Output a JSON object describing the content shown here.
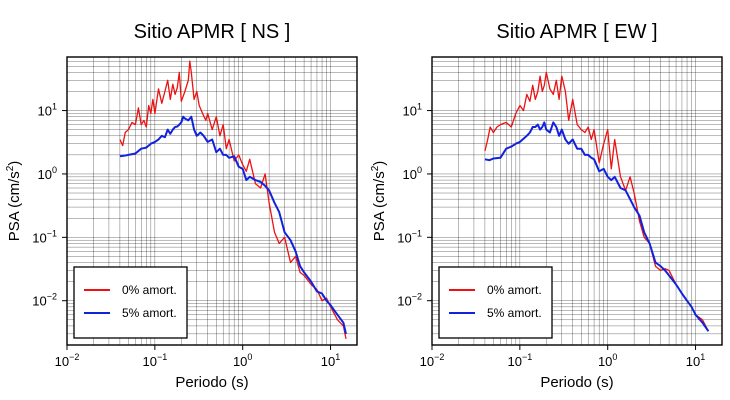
{
  "chart_data": [
    {
      "type": "line",
      "title": "Sitio APMR [ NS ]",
      "xlabel": "Periodo (s)",
      "ylabel_main": "PSA (cm/s",
      "ylabel_sup": "2",
      "ylabel_close": ")",
      "xscale": "log",
      "yscale": "log",
      "xlim": [
        0.01,
        20
      ],
      "ylim": [
        0.002,
        70
      ],
      "xticks": [
        {
          "value": 0.01,
          "base": "10",
          "exp": "−2"
        },
        {
          "value": 0.1,
          "base": "10",
          "exp": "−1"
        },
        {
          "value": 1,
          "base": "10",
          "exp": "0"
        },
        {
          "value": 10,
          "base": "10",
          "exp": "1"
        }
      ],
      "yticks": [
        {
          "value": 0.01,
          "base": "10",
          "exp": "−2"
        },
        {
          "value": 0.1,
          "base": "10",
          "exp": "−1"
        },
        {
          "value": 1,
          "base": "10",
          "exp": "0"
        },
        {
          "value": 10,
          "base": "10",
          "exp": "1"
        }
      ],
      "grid": true,
      "legend_position": "bottom-left",
      "series": [
        {
          "name": "0% amort.",
          "color": "#ee1111",
          "x": [
            0.04,
            0.043,
            0.046,
            0.05,
            0.055,
            0.06,
            0.065,
            0.07,
            0.075,
            0.08,
            0.085,
            0.09,
            0.095,
            0.1,
            0.11,
            0.12,
            0.13,
            0.14,
            0.15,
            0.16,
            0.17,
            0.18,
            0.19,
            0.2,
            0.22,
            0.24,
            0.25,
            0.26,
            0.28,
            0.3,
            0.32,
            0.35,
            0.38,
            0.4,
            0.45,
            0.5,
            0.55,
            0.6,
            0.65,
            0.7,
            0.8,
            0.9,
            1.0,
            1.1,
            1.2,
            1.4,
            1.6,
            1.8,
            2.0,
            2.3,
            2.6,
            3.0,
            3.5,
            4.0,
            4.5,
            5.0,
            6.0,
            7.0,
            8.0,
            9.0,
            10.0,
            12.0,
            14.0,
            15.0
          ],
          "y": [
            3.5,
            2.8,
            4.5,
            5.0,
            6.5,
            6.0,
            11.0,
            6.0,
            7.0,
            5.5,
            12.0,
            9.0,
            15.0,
            9.0,
            22.0,
            13.0,
            20.0,
            30.0,
            15.0,
            26.0,
            18.0,
            23.0,
            40.0,
            14.0,
            20.0,
            30.0,
            60.0,
            40.0,
            15.0,
            20.0,
            12.0,
            9.0,
            7.0,
            9.0,
            5.0,
            8.0,
            4.0,
            6.0,
            2.5,
            3.5,
            1.6,
            2.0,
            1.4,
            1.1,
            1.7,
            0.7,
            0.6,
            1.0,
            0.35,
            0.12,
            0.08,
            0.1,
            0.04,
            0.05,
            0.028,
            0.025,
            0.018,
            0.015,
            0.01,
            0.011,
            0.008,
            0.005,
            0.004,
            0.0025
          ]
        },
        {
          "name": "5% amort.",
          "color": "#1122dd",
          "x": [
            0.04,
            0.045,
            0.05,
            0.06,
            0.07,
            0.08,
            0.09,
            0.1,
            0.11,
            0.12,
            0.13,
            0.14,
            0.15,
            0.16,
            0.17,
            0.18,
            0.19,
            0.2,
            0.21,
            0.22,
            0.24,
            0.26,
            0.28,
            0.3,
            0.33,
            0.36,
            0.4,
            0.45,
            0.5,
            0.55,
            0.6,
            0.65,
            0.7,
            0.8,
            0.9,
            1.0,
            1.1,
            1.2,
            1.4,
            1.6,
            1.8,
            2.0,
            2.3,
            2.6,
            3.0,
            3.5,
            4.0,
            4.5,
            5.0,
            6.0,
            7.0,
            8.0,
            9.0,
            10.0,
            12.0,
            14.0,
            15.0
          ],
          "y": [
            1.9,
            1.95,
            2.0,
            2.1,
            2.5,
            2.6,
            3.0,
            3.2,
            3.5,
            4.0,
            3.8,
            5.0,
            4.3,
            5.0,
            5.5,
            5.6,
            6.0,
            6.5,
            8.0,
            7.5,
            7.0,
            8.0,
            5.0,
            4.0,
            4.5,
            4.0,
            3.2,
            3.5,
            2.2,
            2.5,
            2.0,
            2.0,
            1.8,
            1.9,
            1.3,
            1.2,
            0.8,
            0.9,
            0.8,
            0.75,
            0.65,
            0.55,
            0.35,
            0.25,
            0.12,
            0.09,
            0.06,
            0.035,
            0.028,
            0.02,
            0.014,
            0.013,
            0.01,
            0.0085,
            0.006,
            0.0045,
            0.003
          ]
        }
      ]
    },
    {
      "type": "line",
      "title": "Sitio APMR [ EW ]",
      "xlabel": "Periodo (s)",
      "ylabel_main": "PSA (cm/s",
      "ylabel_sup": "2",
      "ylabel_close": ")",
      "xscale": "log",
      "yscale": "log",
      "xlim": [
        0.01,
        20
      ],
      "ylim": [
        0.002,
        70
      ],
      "xticks": [
        {
          "value": 0.01,
          "base": "10",
          "exp": "−2"
        },
        {
          "value": 0.1,
          "base": "10",
          "exp": "−1"
        },
        {
          "value": 1,
          "base": "10",
          "exp": "0"
        },
        {
          "value": 10,
          "base": "10",
          "exp": "1"
        }
      ],
      "yticks": [
        {
          "value": 0.01,
          "base": "10",
          "exp": "−2"
        },
        {
          "value": 0.1,
          "base": "10",
          "exp": "−1"
        },
        {
          "value": 1,
          "base": "10",
          "exp": "0"
        },
        {
          "value": 10,
          "base": "10",
          "exp": "1"
        }
      ],
      "grid": true,
      "legend_position": "bottom-left",
      "series": [
        {
          "name": "0% amort.",
          "color": "#ee1111",
          "x": [
            0.04,
            0.043,
            0.046,
            0.05,
            0.055,
            0.06,
            0.07,
            0.08,
            0.09,
            0.1,
            0.11,
            0.12,
            0.13,
            0.14,
            0.15,
            0.16,
            0.17,
            0.18,
            0.19,
            0.2,
            0.22,
            0.24,
            0.26,
            0.28,
            0.3,
            0.33,
            0.36,
            0.4,
            0.45,
            0.5,
            0.55,
            0.6,
            0.65,
            0.7,
            0.8,
            0.9,
            1.0,
            1.1,
            1.2,
            1.4,
            1.6,
            1.8,
            2.0,
            2.3,
            2.6,
            3.0,
            3.5,
            4.0,
            4.5,
            5.0,
            6.0,
            7.0,
            8.0,
            9.0,
            10.0,
            12.0,
            14.0
          ],
          "y": [
            2.3,
            3.5,
            5.5,
            4.5,
            5.5,
            6.0,
            6.5,
            5.5,
            9.0,
            12.0,
            10.0,
            18.0,
            14.0,
            25.0,
            15.0,
            20.0,
            35.0,
            20.0,
            25.0,
            40.0,
            22.0,
            18.0,
            30.0,
            15.0,
            35.0,
            20.0,
            7.0,
            15.0,
            6.0,
            5.0,
            4.5,
            5.5,
            3.5,
            5.0,
            1.5,
            3.0,
            5.0,
            1.2,
            3.5,
            0.9,
            0.55,
            0.9,
            0.5,
            0.18,
            0.1,
            0.08,
            0.035,
            0.03,
            0.032,
            0.03,
            0.018,
            0.013,
            0.01,
            0.008,
            0.006,
            0.005,
            0.0033
          ]
        },
        {
          "name": "5% amort.",
          "color": "#1122dd",
          "x": [
            0.04,
            0.045,
            0.05,
            0.06,
            0.07,
            0.08,
            0.09,
            0.1,
            0.11,
            0.12,
            0.13,
            0.14,
            0.15,
            0.16,
            0.17,
            0.18,
            0.19,
            0.2,
            0.22,
            0.24,
            0.26,
            0.28,
            0.3,
            0.33,
            0.36,
            0.4,
            0.45,
            0.5,
            0.55,
            0.6,
            0.65,
            0.7,
            0.8,
            0.9,
            1.0,
            1.1,
            1.2,
            1.4,
            1.6,
            1.8,
            2.0,
            2.3,
            2.6,
            3.0,
            3.5,
            4.0,
            4.5,
            5.0,
            6.0,
            7.0,
            8.0,
            9.0,
            10.0,
            12.0,
            14.0
          ],
          "y": [
            1.7,
            1.65,
            1.75,
            1.8,
            2.5,
            2.7,
            3.0,
            3.2,
            3.6,
            4.0,
            4.5,
            5.5,
            5.5,
            6.0,
            5.0,
            5.5,
            6.5,
            5.0,
            4.5,
            6.5,
            5.5,
            4.0,
            5.0,
            3.5,
            3.0,
            3.5,
            2.5,
            2.5,
            2.0,
            2.0,
            1.8,
            1.7,
            1.1,
            1.2,
            0.9,
            0.8,
            0.9,
            0.6,
            0.55,
            0.4,
            0.3,
            0.22,
            0.12,
            0.08,
            0.04,
            0.035,
            0.03,
            0.025,
            0.018,
            0.013,
            0.01,
            0.008,
            0.006,
            0.0045,
            0.0033
          ]
        }
      ]
    }
  ]
}
